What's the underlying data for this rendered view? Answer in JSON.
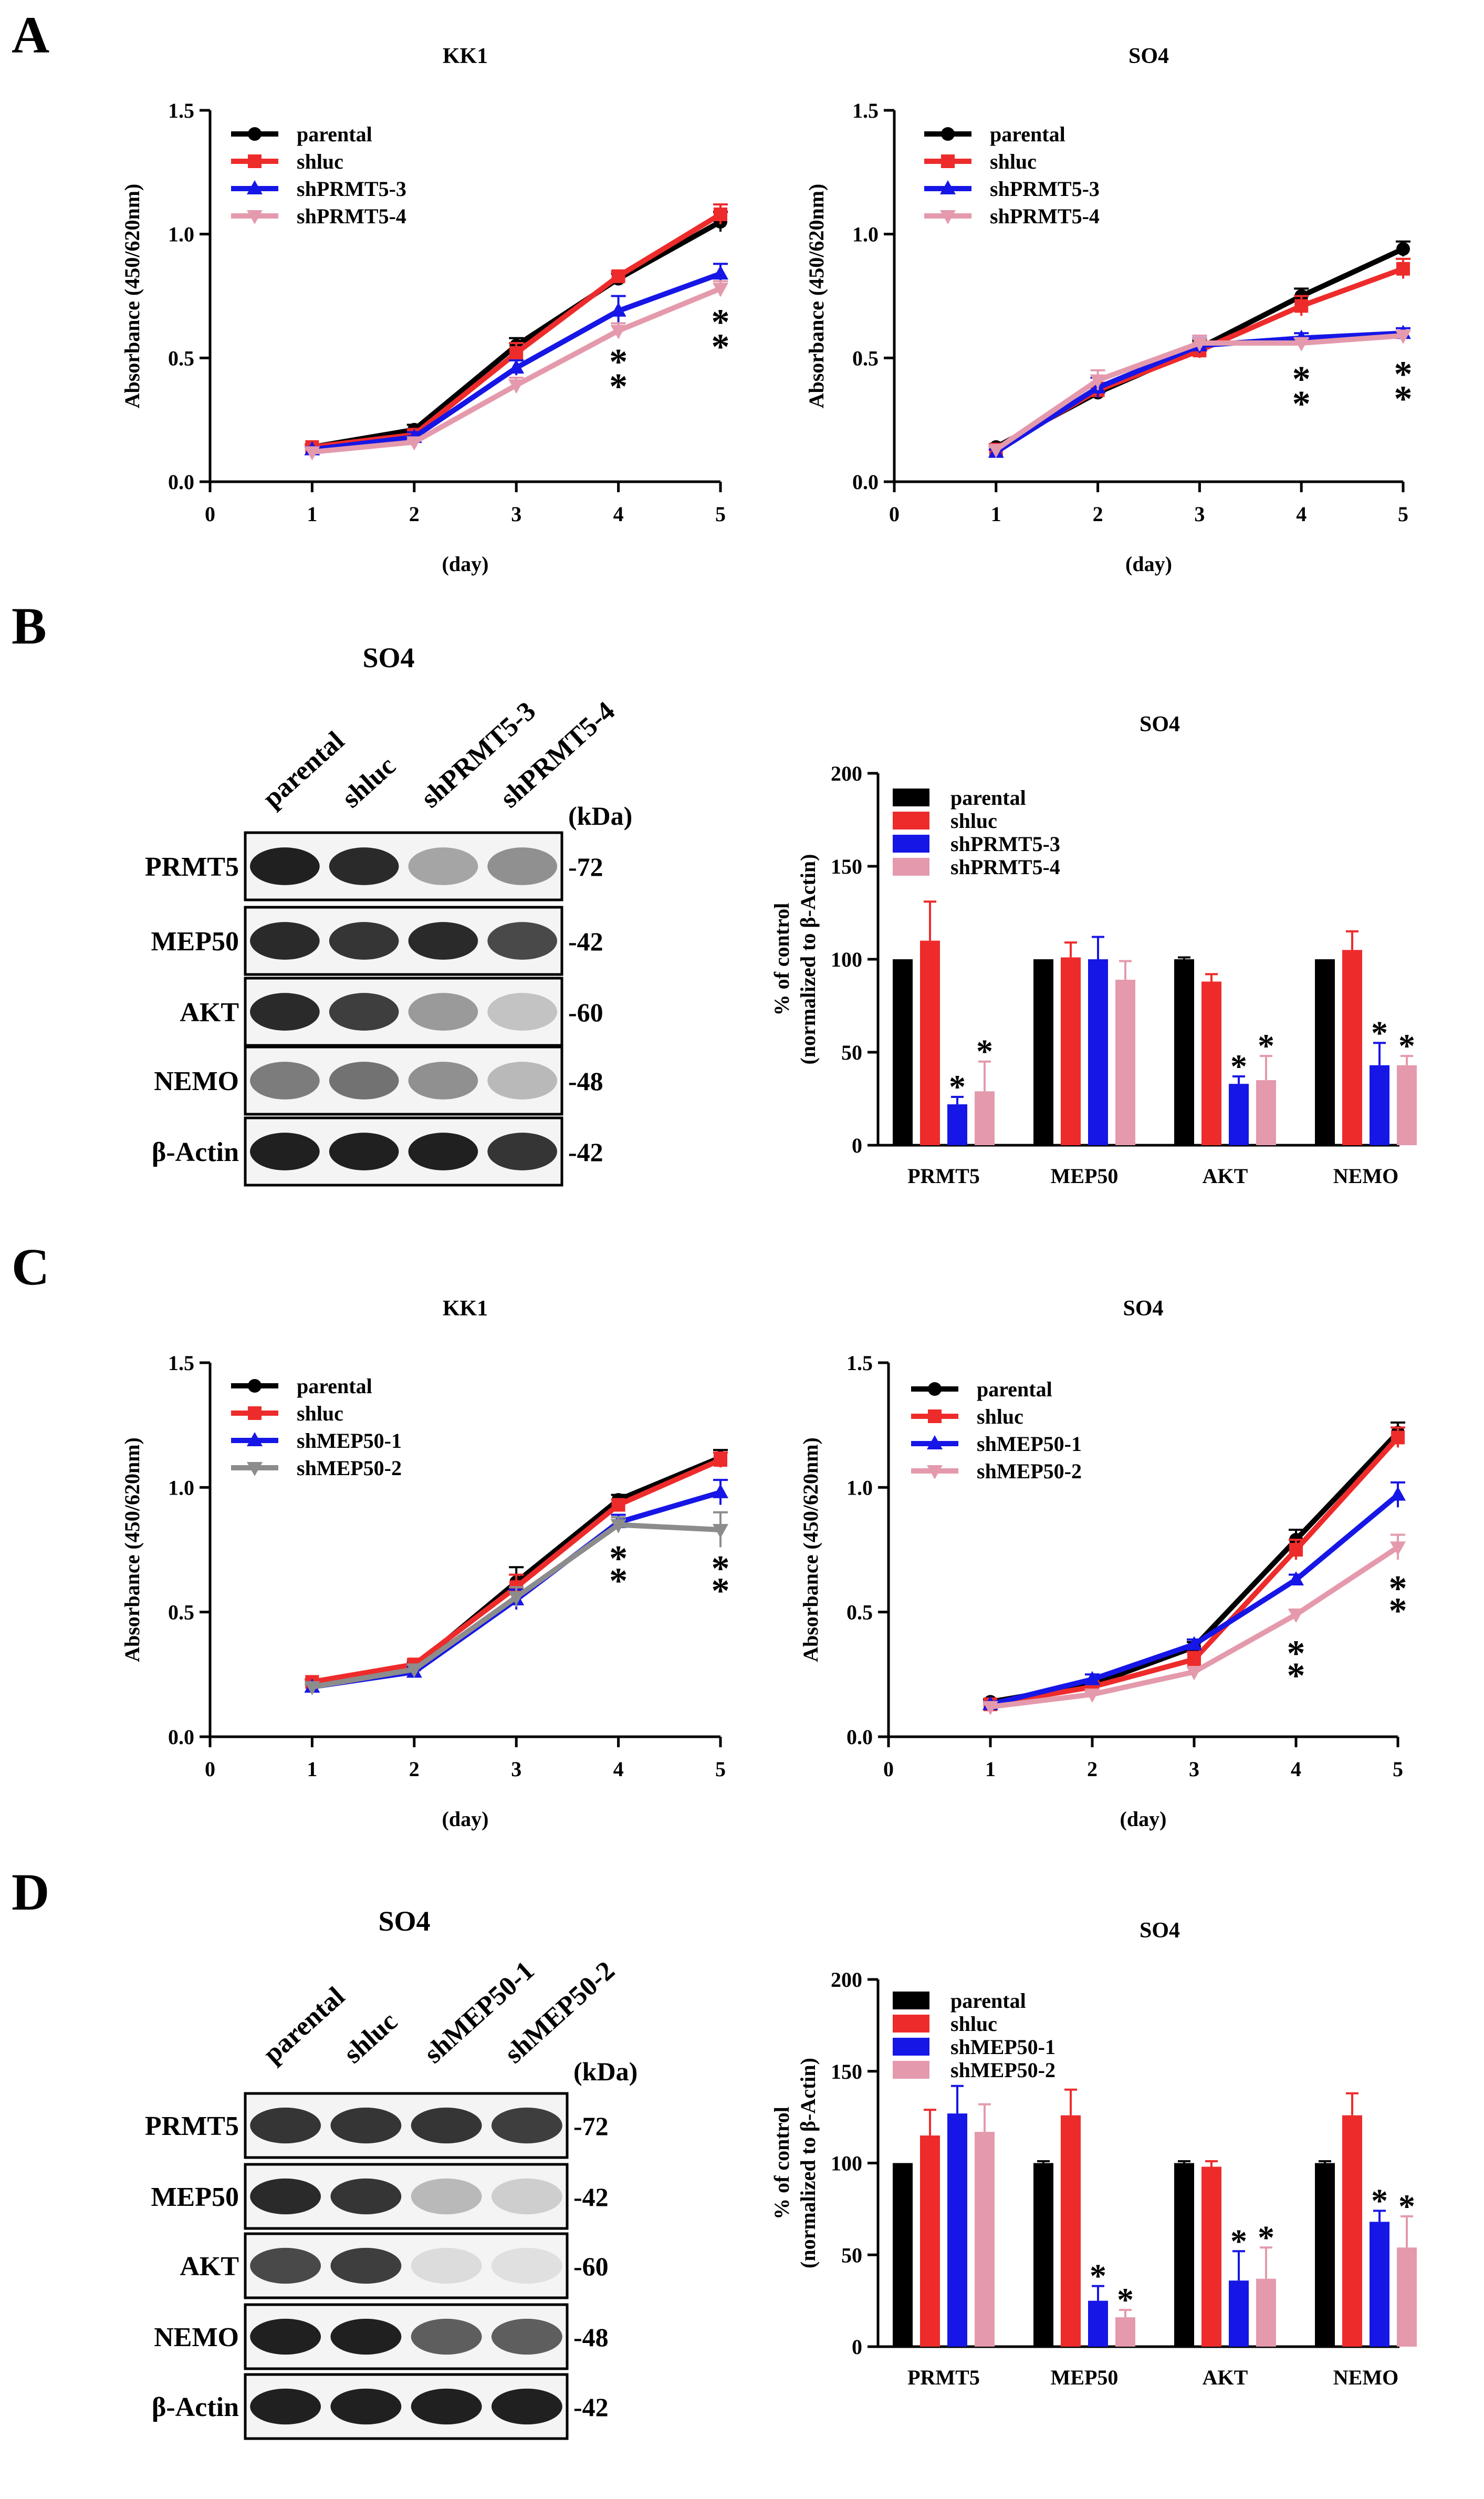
{
  "figure": {
    "panels": [
      {
        "id": "A",
        "letter": "A"
      },
      {
        "id": "B",
        "letter": "B"
      },
      {
        "id": "C",
        "letter": "C"
      },
      {
        "id": "D",
        "letter": "D"
      }
    ]
  },
  "colors": {
    "parental": "#000000",
    "shluc": "#ee2b2b",
    "kd1": "#1616e6",
    "kd2": "#e49aac",
    "kd2_grey": "#8c8c8c"
  },
  "chart_data": [
    {
      "id": "A1",
      "type": "line",
      "title": "KK1",
      "xlabel": "(day)",
      "ylabel": "Absorbance (450/620nm)",
      "xlim": [
        0,
        5
      ],
      "ylim": [
        0,
        1.5
      ],
      "xticks": [
        0,
        1,
        2,
        3,
        4,
        5
      ],
      "yticks": [
        0.0,
        0.5,
        1.0,
        1.5
      ],
      "xtick_labels": [
        "0",
        "1",
        "2",
        "3",
        "4",
        "5"
      ],
      "ytick_labels": [
        "0.0",
        "0.5",
        "1.0",
        "1.5"
      ],
      "x": [
        1,
        2,
        3,
        4,
        5
      ],
      "series": [
        {
          "name": "parental",
          "color": "#000000",
          "marker": "circle",
          "values": [
            0.14,
            0.21,
            0.55,
            0.82,
            1.05
          ],
          "err": [
            0.01,
            0.02,
            0.03,
            0.02,
            0.04
          ]
        },
        {
          "name": "shluc",
          "color": "#ee2b2b",
          "marker": "square",
          "values": [
            0.14,
            0.19,
            0.52,
            0.83,
            1.08
          ],
          "err": [
            0.01,
            0.02,
            0.04,
            0.02,
            0.04
          ]
        },
        {
          "name": "shPRMT5-3",
          "color": "#1616e6",
          "marker": "triangle-up",
          "values": [
            0.13,
            0.18,
            0.46,
            0.69,
            0.84
          ],
          "err": [
            0.01,
            0.02,
            0.03,
            0.06,
            0.04
          ]
        },
        {
          "name": "shPRMT5-4",
          "color": "#e49aac",
          "marker": "triangle-down",
          "values": [
            0.12,
            0.16,
            0.39,
            0.61,
            0.78
          ],
          "err": [
            0.01,
            0.01,
            0.03,
            0.03,
            0.03
          ]
        }
      ],
      "annotations": [
        {
          "x": 4,
          "y": 0.52,
          "text": "*"
        },
        {
          "x": 4,
          "y": 0.42,
          "text": "*"
        },
        {
          "x": 5,
          "y": 0.68,
          "text": "*"
        },
        {
          "x": 5,
          "y": 0.58,
          "text": "*"
        }
      ]
    },
    {
      "id": "A2",
      "type": "line",
      "title": "SO4",
      "xlabel": "(day)",
      "ylabel": "Absorbance (450/620nm)",
      "xlim": [
        0,
        5
      ],
      "ylim": [
        0,
        1.5
      ],
      "xticks": [
        0,
        1,
        2,
        3,
        4,
        5
      ],
      "yticks": [
        0.0,
        0.5,
        1.0,
        1.5
      ],
      "xtick_labels": [
        "0",
        "1",
        "2",
        "3",
        "4",
        "5"
      ],
      "ytick_labels": [
        "0.0",
        "0.5",
        "1.0",
        "1.5"
      ],
      "x": [
        1,
        2,
        3,
        4,
        5
      ],
      "series": [
        {
          "name": "parental",
          "color": "#000000",
          "marker": "circle",
          "values": [
            0.14,
            0.36,
            0.54,
            0.75,
            0.94
          ],
          "err": [
            0.01,
            0.02,
            0.03,
            0.03,
            0.03
          ]
        },
        {
          "name": "shluc",
          "color": "#ee2b2b",
          "marker": "square",
          "values": [
            0.13,
            0.37,
            0.53,
            0.71,
            0.86
          ],
          "err": [
            0.01,
            0.03,
            0.03,
            0.04,
            0.04
          ]
        },
        {
          "name": "shPRMT5-3",
          "color": "#1616e6",
          "marker": "triangle-up",
          "values": [
            0.12,
            0.38,
            0.55,
            0.58,
            0.6
          ],
          "err": [
            0.01,
            0.04,
            0.03,
            0.02,
            0.02
          ]
        },
        {
          "name": "shPRMT5-4",
          "color": "#e49aac",
          "marker": "triangle-down",
          "values": [
            0.13,
            0.41,
            0.56,
            0.56,
            0.59
          ],
          "err": [
            0.01,
            0.04,
            0.03,
            0.02,
            0.02
          ]
        }
      ],
      "annotations": [
        {
          "x": 4,
          "y": 0.45,
          "text": "*"
        },
        {
          "x": 4,
          "y": 0.35,
          "text": "*"
        },
        {
          "x": 5,
          "y": 0.47,
          "text": "*"
        },
        {
          "x": 5,
          "y": 0.37,
          "text": "*"
        }
      ]
    },
    {
      "id": "B",
      "type": "bar",
      "title": "SO4",
      "xlabel": "",
      "ylabel": "% of control",
      "ylabel2": "(normalized to β-Actin)",
      "ylim": [
        0,
        200
      ],
      "yticks": [
        0,
        50,
        100,
        150,
        200
      ],
      "ytick_labels": [
        "0",
        "50",
        "100",
        "150",
        "200"
      ],
      "categories": [
        "PRMT5",
        "MEP50",
        "AKT",
        "NEMO"
      ],
      "series": [
        {
          "name": "parental",
          "color": "#000000",
          "values": [
            100,
            100,
            100,
            100
          ],
          "err": [
            0,
            0,
            1,
            0
          ]
        },
        {
          "name": "shluc",
          "color": "#ee2b2b",
          "values": [
            110,
            101,
            88,
            105
          ],
          "err": [
            21,
            8,
            4,
            10
          ]
        },
        {
          "name": "shPRMT5-3",
          "color": "#1616e6",
          "values": [
            22,
            100,
            33,
            43
          ],
          "err": [
            4,
            12,
            4,
            12
          ]
        },
        {
          "name": "shPRMT5-4",
          "color": "#e49aac",
          "values": [
            29,
            89,
            35,
            43
          ],
          "err": [
            16,
            10,
            13,
            5
          ]
        }
      ],
      "significance": [
        [
          false,
          false,
          true,
          true
        ],
        [
          false,
          false,
          false,
          false
        ],
        [
          false,
          false,
          true,
          true
        ],
        [
          false,
          false,
          true,
          true
        ]
      ]
    },
    {
      "id": "C1",
      "type": "line",
      "title": "KK1",
      "xlabel": "(day)",
      "ylabel": "Absorbance (450/620nm)",
      "xlim": [
        0,
        5
      ],
      "ylim": [
        0,
        1.5
      ],
      "xticks": [
        0,
        1,
        2,
        3,
        4,
        5
      ],
      "yticks": [
        0.0,
        0.5,
        1.0,
        1.5
      ],
      "xtick_labels": [
        "0",
        "1",
        "2",
        "3",
        "4",
        "5"
      ],
      "ytick_labels": [
        "0.0",
        "0.5",
        "1.0",
        "1.5"
      ],
      "x": [
        1,
        2,
        3,
        4,
        5
      ],
      "series": [
        {
          "name": "parental",
          "color": "#000000",
          "marker": "circle",
          "values": [
            0.22,
            0.28,
            0.62,
            0.95,
            1.12
          ],
          "err": [
            0.01,
            0.02,
            0.06,
            0.02,
            0.03
          ]
        },
        {
          "name": "shluc",
          "color": "#ee2b2b",
          "marker": "square",
          "values": [
            0.22,
            0.29,
            0.6,
            0.93,
            1.11
          ],
          "err": [
            0.01,
            0.02,
            0.05,
            0.02,
            0.03
          ]
        },
        {
          "name": "shMEP50-1",
          "color": "#1616e6",
          "marker": "triangle-up",
          "values": [
            0.2,
            0.26,
            0.55,
            0.86,
            0.98
          ],
          "err": [
            0.01,
            0.02,
            0.04,
            0.03,
            0.05
          ]
        },
        {
          "name": "shMEP50-2",
          "color": "#8c8c8c",
          "marker": "triangle-down",
          "values": [
            0.2,
            0.27,
            0.56,
            0.85,
            0.83
          ],
          "err": [
            0.01,
            0.02,
            0.04,
            0.03,
            0.07
          ]
        }
      ],
      "annotations": [
        {
          "x": 4,
          "y": 0.75,
          "text": "*"
        },
        {
          "x": 4,
          "y": 0.66,
          "text": "*"
        },
        {
          "x": 5,
          "y": 0.71,
          "text": "*"
        },
        {
          "x": 5,
          "y": 0.62,
          "text": "*"
        }
      ]
    },
    {
      "id": "C2",
      "type": "line",
      "title": "SO4",
      "xlabel": "(day)",
      "ylabel": "Absorbance (450/620nm)",
      "xlim": [
        0,
        5
      ],
      "ylim": [
        0,
        1.5
      ],
      "xticks": [
        0,
        1,
        2,
        3,
        4,
        5
      ],
      "yticks": [
        0.0,
        0.5,
        1.0,
        1.5
      ],
      "xtick_labels": [
        "0",
        "1",
        "2",
        "3",
        "4",
        "5"
      ],
      "ytick_labels": [
        "0.0",
        "0.5",
        "1.0",
        "1.5"
      ],
      "x": [
        1,
        2,
        3,
        4,
        5
      ],
      "series": [
        {
          "name": "parental",
          "color": "#000000",
          "marker": "circle",
          "values": [
            0.14,
            0.21,
            0.36,
            0.79,
            1.22
          ],
          "err": [
            0.01,
            0.02,
            0.02,
            0.04,
            0.04
          ]
        },
        {
          "name": "shluc",
          "color": "#ee2b2b",
          "marker": "square",
          "values": [
            0.13,
            0.2,
            0.31,
            0.75,
            1.2
          ],
          "err": [
            0.01,
            0.02,
            0.03,
            0.04,
            0.04
          ]
        },
        {
          "name": "shMEP50-1",
          "color": "#1616e6",
          "marker": "triangle-up",
          "values": [
            0.13,
            0.23,
            0.37,
            0.63,
            0.97
          ],
          "err": [
            0.01,
            0.02,
            0.02,
            0.02,
            0.05
          ]
        },
        {
          "name": "shMEP50-2",
          "color": "#e49aac",
          "marker": "triangle-down",
          "values": [
            0.12,
            0.17,
            0.26,
            0.49,
            0.76
          ],
          "err": [
            0.01,
            0.01,
            0.02,
            0.02,
            0.05
          ]
        }
      ],
      "annotations": [
        {
          "x": 4,
          "y": 0.37,
          "text": "*"
        },
        {
          "x": 4,
          "y": 0.28,
          "text": "*"
        },
        {
          "x": 5,
          "y": 0.63,
          "text": "*"
        },
        {
          "x": 5,
          "y": 0.54,
          "text": "*"
        }
      ]
    },
    {
      "id": "D",
      "type": "bar",
      "title": "SO4",
      "xlabel": "",
      "ylabel": "% of control",
      "ylabel2": "(normalized to β-Actin)",
      "ylim": [
        0,
        200
      ],
      "yticks": [
        0,
        50,
        100,
        150,
        200
      ],
      "ytick_labels": [
        "0",
        "50",
        "100",
        "150",
        "200"
      ],
      "categories": [
        "PRMT5",
        "MEP50",
        "AKT",
        "NEMO"
      ],
      "series": [
        {
          "name": "parental",
          "color": "#000000",
          "values": [
            100,
            100,
            100,
            100
          ],
          "err": [
            0,
            1,
            1,
            1
          ]
        },
        {
          "name": "shluc",
          "color": "#ee2b2b",
          "values": [
            115,
            126,
            98,
            126
          ],
          "err": [
            14,
            14,
            3,
            12
          ]
        },
        {
          "name": "shMEP50-1",
          "color": "#1616e6",
          "values": [
            127,
            25,
            36,
            68
          ],
          "err": [
            15,
            8,
            16,
            6
          ]
        },
        {
          "name": "shMEP50-2",
          "color": "#e49aac",
          "values": [
            117,
            16,
            37,
            54
          ],
          "err": [
            15,
            4,
            17,
            17
          ]
        }
      ],
      "significance": [
        [
          false,
          false,
          false,
          false
        ],
        [
          false,
          false,
          true,
          true
        ],
        [
          false,
          false,
          true,
          true
        ],
        [
          false,
          false,
          true,
          true
        ]
      ]
    }
  ],
  "blots": [
    {
      "id": "B",
      "title": "SO4",
      "kda_label": "(kDa)",
      "lanes": [
        "parental",
        "shluc",
        "shPRMT5-3",
        "shPRMT5-4"
      ],
      "rows": [
        {
          "label": "PRMT5",
          "kda": "-72",
          "intensity": [
            1.0,
            0.95,
            0.35,
            0.45
          ]
        },
        {
          "label": "MEP50",
          "kda": "-42",
          "intensity": [
            0.95,
            0.9,
            0.95,
            0.8
          ]
        },
        {
          "label": "AKT",
          "kda": "-60",
          "intensity": [
            0.95,
            0.85,
            0.4,
            0.2
          ]
        },
        {
          "label": "NEMO",
          "kda": "-48",
          "intensity": [
            0.55,
            0.6,
            0.45,
            0.25
          ]
        },
        {
          "label": "β-Actin",
          "kda": "-42",
          "intensity": [
            1.0,
            1.0,
            1.0,
            0.9
          ]
        }
      ]
    },
    {
      "id": "D",
      "title": "SO4",
      "kda_label": "(kDa)",
      "lanes": [
        "parental",
        "shluc",
        "shMEP50-1",
        "shMEP50-2"
      ],
      "rows": [
        {
          "label": "PRMT5",
          "kda": "-72",
          "intensity": [
            0.9,
            0.9,
            0.9,
            0.85
          ]
        },
        {
          "label": "MEP50",
          "kda": "-42",
          "intensity": [
            0.95,
            0.9,
            0.25,
            0.15
          ]
        },
        {
          "label": "AKT",
          "kda": "-60",
          "intensity": [
            0.8,
            0.85,
            0.08,
            0.06
          ]
        },
        {
          "label": "NEMO",
          "kda": "-48",
          "intensity": [
            1.0,
            1.0,
            0.7,
            0.7
          ]
        },
        {
          "label": "β-Actin",
          "kda": "-42",
          "intensity": [
            1.0,
            1.0,
            1.0,
            1.0
          ]
        }
      ]
    }
  ]
}
